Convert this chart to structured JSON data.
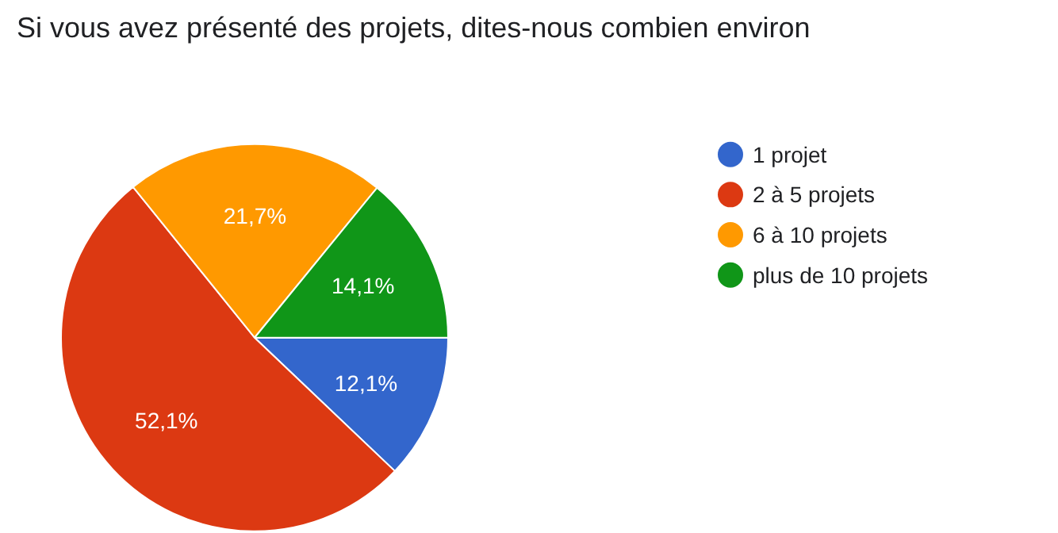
{
  "chart_data": {
    "type": "pie",
    "title": "Si vous avez présenté des projets, dites-nous combien environ",
    "categories": [
      "1 projet",
      "2 à 5 projets",
      "6 à 10 projets",
      "plus de 10 projets"
    ],
    "values": [
      12.1,
      52.1,
      21.7,
      14.1
    ],
    "colors": [
      "#3366cc",
      "#dc3912",
      "#ff9900",
      "#109618"
    ],
    "value_labels": [
      "12,1%",
      "52,1%",
      "21,7%",
      "14,1%"
    ],
    "legend": "right"
  }
}
